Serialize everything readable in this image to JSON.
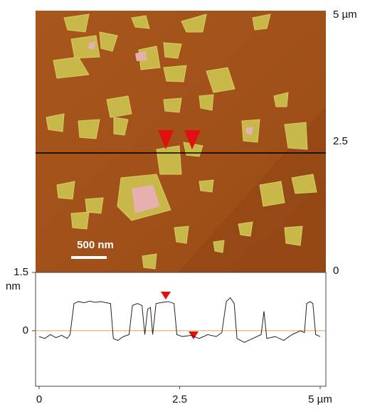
{
  "chart_data": [
    {
      "type": "image",
      "ylim": [
        0,
        5
      ],
      "yticks": [
        0,
        2.5,
        {
          "value": 5,
          "label": "5 µm"
        }
      ],
      "scale_bar": "500 nm"
    },
    {
      "type": "line",
      "y_label": "nm",
      "xlim": [
        0,
        5
      ],
      "ylim": [
        -1.43,
        1.5
      ],
      "xticks": [
        0,
        2.5,
        {
          "value": 5,
          "label": "5 µm"
        }
      ],
      "yticks": [
        0,
        1.5
      ],
      "zero_line_color": "#e0a050",
      "series": [
        {
          "color": "#222222",
          "x": [
            0,
            0.1,
            0.2,
            0.3,
            0.4,
            0.5,
            0.55,
            0.62,
            0.7,
            0.8,
            0.9,
            1.0,
            1.1,
            1.2,
            1.27,
            1.32,
            1.4,
            1.5,
            1.6,
            1.66,
            1.75,
            1.83,
            1.88,
            1.93,
            1.98,
            2.02,
            2.08,
            2.2,
            2.3,
            2.4,
            2.45,
            2.55,
            2.7,
            2.85,
            3.0,
            3.15,
            3.25,
            3.33,
            3.4,
            3.47,
            3.52,
            3.65,
            3.8,
            3.95,
            4.0,
            4.05,
            4.2,
            4.35,
            4.5,
            4.65,
            4.72,
            4.76,
            4.82,
            4.87,
            4.92,
            5.0
          ],
          "values": [
            -0.15,
            -0.2,
            -0.1,
            -0.18,
            -0.12,
            -0.2,
            -0.1,
            0.7,
            0.75,
            0.72,
            0.76,
            0.73,
            0.75,
            0.72,
            0.7,
            -0.2,
            -0.25,
            -0.15,
            -0.1,
            0.65,
            0.7,
            0.65,
            -0.1,
            0.55,
            0.6,
            -0.1,
            0.7,
            0.73,
            0.75,
            0.7,
            -0.1,
            -0.15,
            -0.12,
            -0.2,
            -0.1,
            -0.15,
            -0.05,
            0.75,
            0.85,
            0.7,
            -0.2,
            -0.3,
            -0.2,
            -0.1,
            0.5,
            -0.2,
            -0.15,
            -0.25,
            -0.1,
            0,
            -0.05,
            0.7,
            0.75,
            0.7,
            -0.1,
            -0.15
          ]
        }
      ]
    }
  ]
}
